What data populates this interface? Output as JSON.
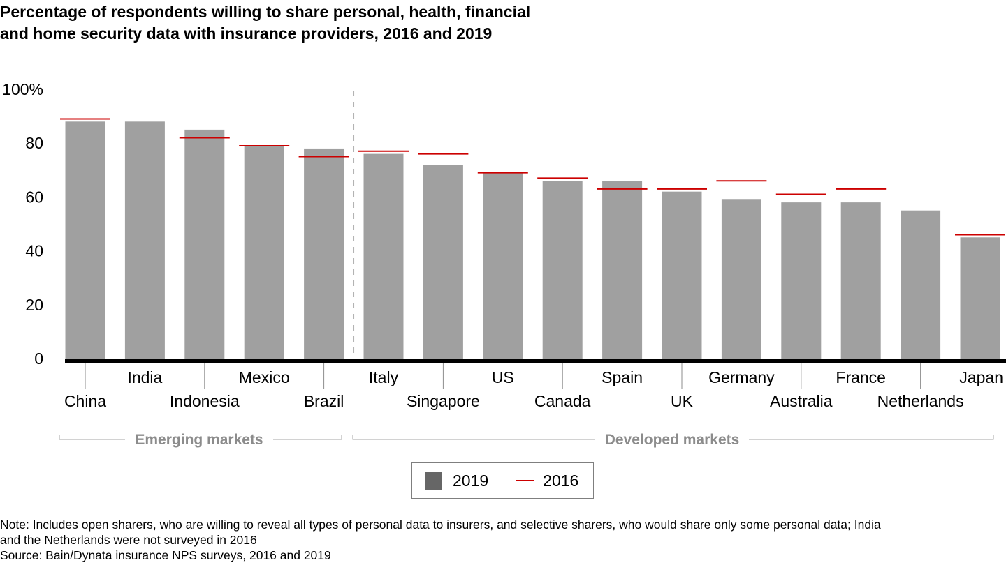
{
  "title_lines": [
    "Percentage of respondents willing to share personal, health, financial",
    "and home security data with insurance providers, 2016 and 2019"
  ],
  "legend": {
    "series_2019": "2019",
    "series_2016": "2016"
  },
  "notes": [
    "Note: Includes open sharers, who are willing to reveal all types of personal data to insurers, and selective sharers, who would share only some personal data; India",
    "and the Netherlands were not surveyed in 2016",
    "Source: Bain/Dynata insurance NPS surveys, 2016 and 2019"
  ],
  "colors": {
    "bar_2019": "#a0a0a0",
    "legend_2019": "#666666",
    "line_2016": "#cc0000",
    "axis": "#000000",
    "group_label": "#8c8c8c"
  },
  "chart_data": {
    "type": "bar",
    "title": "Percentage of respondents willing to share personal, health, financial and home security data with insurance providers, 2016 and 2019",
    "xlabel": "",
    "ylabel": "",
    "ylim": [
      0,
      100
    ],
    "yticks": [
      0,
      20,
      40,
      60,
      80,
      100
    ],
    "ytick_labels": [
      "0",
      "20",
      "40",
      "60",
      "80",
      "100%"
    ],
    "grid": false,
    "legend_position": "bottom-center",
    "categories": [
      "China",
      "India",
      "Indonesia",
      "Mexico",
      "Brazil",
      "Italy",
      "Singapore",
      "US",
      "Canada",
      "Spain",
      "UK",
      "Germany",
      "Australia",
      "France",
      "Netherlands",
      "Japan"
    ],
    "series": [
      {
        "name": "2019",
        "kind": "bar",
        "values": [
          88,
          88,
          85,
          79,
          78,
          76,
          72,
          69,
          66,
          66,
          62,
          59,
          58,
          58,
          55,
          45
        ]
      },
      {
        "name": "2016",
        "kind": "marker-line",
        "values": [
          89,
          null,
          82,
          79,
          75,
          77,
          76,
          69,
          67,
          63,
          63,
          66,
          61,
          63,
          null,
          46
        ]
      }
    ],
    "groups": [
      {
        "label": "Emerging markets",
        "categories": [
          "China",
          "India",
          "Indonesia",
          "Mexico",
          "Brazil"
        ]
      },
      {
        "label": "Developed markets",
        "categories": [
          "Italy",
          "Singapore",
          "US",
          "Canada",
          "Spain",
          "UK",
          "Germany",
          "Australia",
          "France",
          "Netherlands",
          "Japan"
        ]
      }
    ]
  }
}
